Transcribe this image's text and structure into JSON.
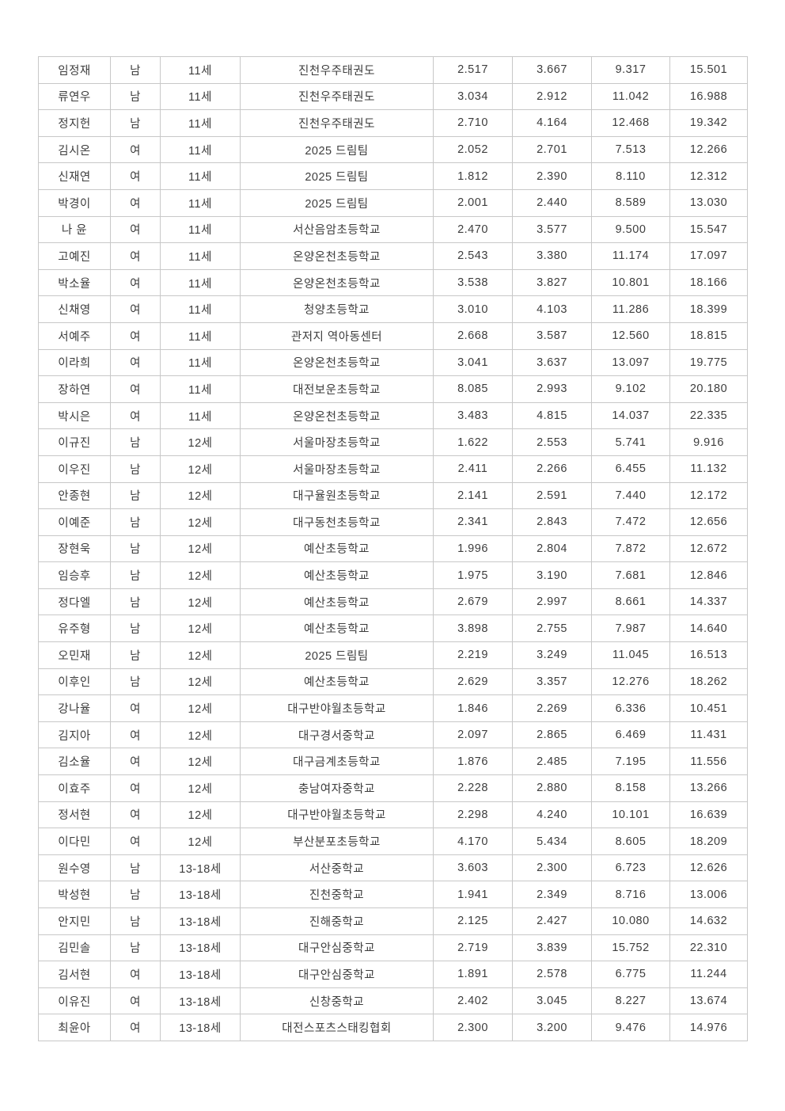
{
  "page": {
    "background_color": "#ffffff",
    "table_border_color": "#c8c8c8",
    "table_text_color": "#3d3d3d"
  },
  "table": {
    "rows": [
      [
        "임정재",
        "남",
        "11세",
        "진천우주태권도",
        "2.517",
        "3.667",
        "9.317",
        "15.501"
      ],
      [
        "류연우",
        "남",
        "11세",
        "진천우주태권도",
        "3.034",
        "2.912",
        "11.042",
        "16.988"
      ],
      [
        "정지헌",
        "남",
        "11세",
        "진천우주태권도",
        "2.710",
        "4.164",
        "12.468",
        "19.342"
      ],
      [
        "김시온",
        "여",
        "11세",
        "2025 드림팀",
        "2.052",
        "2.701",
        "7.513",
        "12.266"
      ],
      [
        "신재연",
        "여",
        "11세",
        "2025 드림팀",
        "1.812",
        "2.390",
        "8.110",
        "12.312"
      ],
      [
        "박경이",
        "여",
        "11세",
        "2025 드림팀",
        "2.001",
        "2.440",
        "8.589",
        "13.030"
      ],
      [
        "나 윤",
        "여",
        "11세",
        "서산음암초등학교",
        "2.470",
        "3.577",
        "9.500",
        "15.547"
      ],
      [
        "고예진",
        "여",
        "11세",
        "온양온천초등학교",
        "2.543",
        "3.380",
        "11.174",
        "17.097"
      ],
      [
        "박소율",
        "여",
        "11세",
        "온양온천초등학교",
        "3.538",
        "3.827",
        "10.801",
        "18.166"
      ],
      [
        "신채영",
        "여",
        "11세",
        "청양초등학교",
        "3.010",
        "4.103",
        "11.286",
        "18.399"
      ],
      [
        "서예주",
        "여",
        "11세",
        "관저지 역아동센터",
        "2.668",
        "3.587",
        "12.560",
        "18.815"
      ],
      [
        "이라희",
        "여",
        "11세",
        "온양온천초등학교",
        "3.041",
        "3.637",
        "13.097",
        "19.775"
      ],
      [
        "장하연",
        "여",
        "11세",
        "대전보운초등학교",
        "8.085",
        "2.993",
        "9.102",
        "20.180"
      ],
      [
        "박시은",
        "여",
        "11세",
        "온양온천초등학교",
        "3.483",
        "4.815",
        "14.037",
        "22.335"
      ],
      [
        "이규진",
        "남",
        "12세",
        "서울마장초등학교",
        "1.622",
        "2.553",
        "5.741",
        "9.916"
      ],
      [
        "이우진",
        "남",
        "12세",
        "서울마장초등학교",
        "2.411",
        "2.266",
        "6.455",
        "11.132"
      ],
      [
        "안종현",
        "남",
        "12세",
        "대구율원초등학교",
        "2.141",
        "2.591",
        "7.440",
        "12.172"
      ],
      [
        "이예준",
        "남",
        "12세",
        "대구동천초등학교",
        "2.341",
        "2.843",
        "7.472",
        "12.656"
      ],
      [
        "장현욱",
        "남",
        "12세",
        "예산초등학교",
        "1.996",
        "2.804",
        "7.872",
        "12.672"
      ],
      [
        "임승후",
        "남",
        "12세",
        "예산초등학교",
        "1.975",
        "3.190",
        "7.681",
        "12.846"
      ],
      [
        "정다엘",
        "남",
        "12세",
        "예산초등학교",
        "2.679",
        "2.997",
        "8.661",
        "14.337"
      ],
      [
        "유주형",
        "남",
        "12세",
        "예산초등학교",
        "3.898",
        "2.755",
        "7.987",
        "14.640"
      ],
      [
        "오민재",
        "남",
        "12세",
        "2025 드림팀",
        "2.219",
        "3.249",
        "11.045",
        "16.513"
      ],
      [
        "이후인",
        "남",
        "12세",
        "예산초등학교",
        "2.629",
        "3.357",
        "12.276",
        "18.262"
      ],
      [
        "강나율",
        "여",
        "12세",
        "대구반야월초등학교",
        "1.846",
        "2.269",
        "6.336",
        "10.451"
      ],
      [
        "김지아",
        "여",
        "12세",
        "대구경서중학교",
        "2.097",
        "2.865",
        "6.469",
        "11.431"
      ],
      [
        "김소율",
        "여",
        "12세",
        "대구금계초등학교",
        "1.876",
        "2.485",
        "7.195",
        "11.556"
      ],
      [
        "이효주",
        "여",
        "12세",
        "충남여자중학교",
        "2.228",
        "2.880",
        "8.158",
        "13.266"
      ],
      [
        "정서현",
        "여",
        "12세",
        "대구반야월초등학교",
        "2.298",
        "4.240",
        "10.101",
        "16.639"
      ],
      [
        "이다민",
        "여",
        "12세",
        "부산분포초등학교",
        "4.170",
        "5.434",
        "8.605",
        "18.209"
      ],
      [
        "원수영",
        "남",
        "13-18세",
        "서산중학교",
        "3.603",
        "2.300",
        "6.723",
        "12.626"
      ],
      [
        "박성현",
        "남",
        "13-18세",
        "진천중학교",
        "1.941",
        "2.349",
        "8.716",
        "13.006"
      ],
      [
        "안지민",
        "남",
        "13-18세",
        "진해중학교",
        "2.125",
        "2.427",
        "10.080",
        "14.632"
      ],
      [
        "김민솔",
        "남",
        "13-18세",
        "대구안심중학교",
        "2.719",
        "3.839",
        "15.752",
        "22.310"
      ],
      [
        "김서현",
        "여",
        "13-18세",
        "대구안심중학교",
        "1.891",
        "2.578",
        "6.775",
        "11.244"
      ],
      [
        "이유진",
        "여",
        "13-18세",
        "신창중학교",
        "2.402",
        "3.045",
        "8.227",
        "13.674"
      ],
      [
        "최윤아",
        "여",
        "13-18세",
        "대전스포츠스태킹협회",
        "2.300",
        "3.200",
        "9.476",
        "14.976"
      ]
    ]
  }
}
